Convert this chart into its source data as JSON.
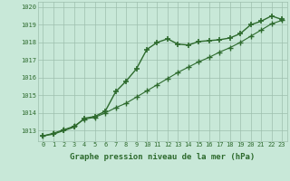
{
  "line1_x": [
    0,
    1,
    2,
    3,
    4,
    5,
    6,
    7,
    8,
    9,
    10,
    11,
    12,
    13,
    14,
    15,
    16,
    17,
    18,
    19,
    20,
    21,
    22,
    23
  ],
  "line1_y": [
    1012.7,
    1012.8,
    1013.0,
    1013.2,
    1013.7,
    1013.8,
    1014.1,
    1015.2,
    1015.8,
    1016.5,
    1017.6,
    1018.0,
    1018.2,
    1017.9,
    1017.85,
    1018.05,
    1018.1,
    1018.15,
    1018.25,
    1018.5,
    1019.0,
    1019.2,
    1019.5,
    1019.3
  ],
  "line2_x": [
    0,
    1,
    2,
    3,
    4,
    5,
    6,
    7,
    8,
    9,
    10,
    11,
    12,
    13,
    14,
    15,
    16,
    17,
    18,
    19,
    20,
    21,
    22,
    23
  ],
  "line2_y": [
    1012.7,
    1012.85,
    1013.05,
    1013.25,
    1013.65,
    1013.75,
    1014.0,
    1014.3,
    1014.55,
    1014.9,
    1015.25,
    1015.6,
    1015.95,
    1016.3,
    1016.6,
    1016.9,
    1017.15,
    1017.45,
    1017.7,
    1018.0,
    1018.35,
    1018.7,
    1019.05,
    1019.25
  ],
  "line_color": "#2d6a2d",
  "bg_color": "#c8e8d8",
  "grid_color": "#9dbfad",
  "xlabel": "Graphe pression niveau de la mer (hPa)",
  "yticks": [
    1013,
    1014,
    1015,
    1016,
    1017,
    1018,
    1019,
    1020
  ],
  "ylim": [
    1012.4,
    1020.3
  ],
  "xlim": [
    -0.5,
    23.5
  ],
  "marker1": "+",
  "marker2": "+",
  "markersize1": 5,
  "markersize2": 4
}
